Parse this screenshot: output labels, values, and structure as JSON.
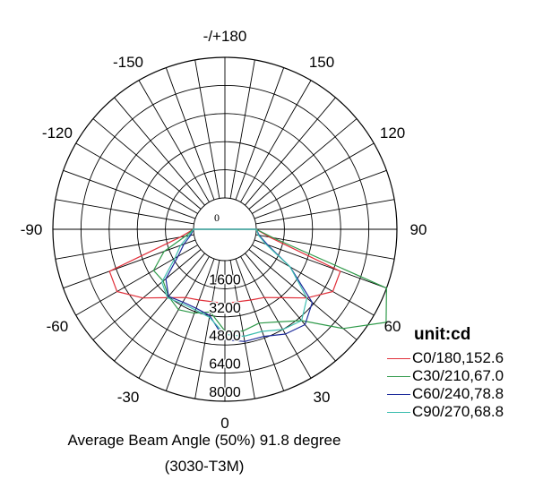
{
  "chart_data": {
    "type": "polar",
    "title": "",
    "unit_label": "unit:cd",
    "angle_labels": [
      {
        "angle": 180,
        "text": "-/+180"
      },
      {
        "angle": 150,
        "text": "150"
      },
      {
        "angle": -150,
        "text": "-150"
      },
      {
        "angle": 120,
        "text": "120"
      },
      {
        "angle": -120,
        "text": "-120"
      },
      {
        "angle": 90,
        "text": "90"
      },
      {
        "angle": -90,
        "text": "-90"
      },
      {
        "angle": 60,
        "text": "60"
      },
      {
        "angle": -60,
        "text": "-60"
      },
      {
        "angle": 30,
        "text": "30"
      },
      {
        "angle": -30,
        "text": "-30"
      },
      {
        "angle": 0,
        "text": "0"
      }
    ],
    "radial_ticks": [
      {
        "value": 0,
        "text": "0"
      },
      {
        "value": 1600,
        "text": "1600"
      },
      {
        "value": 3200,
        "text": "3200"
      },
      {
        "value": 4800,
        "text": "4800"
      },
      {
        "value": 6400,
        "text": "6400"
      },
      {
        "value": 8000,
        "text": "8000"
      }
    ],
    "rmax": 8000,
    "series": [
      {
        "name": "C0/180,152.6",
        "color": "#e0303a",
        "angles": [
          -90,
          -80,
          -70,
          -60,
          -50,
          -40,
          -30,
          -20,
          -10,
          0,
          10,
          20,
          30,
          40,
          50,
          60,
          70,
          80,
          90
        ],
        "values": [
          0,
          800,
          5200,
          5300,
          4300,
          3300,
          2700,
          2500,
          2400,
          2450,
          2400,
          2500,
          2700,
          3300,
          4300,
          5300,
          5200,
          800,
          0
        ]
      },
      {
        "name": "C30/210,67.0",
        "color": "#2f9a4a",
        "angles": [
          -90,
          -80,
          -70,
          -60,
          -50,
          -40,
          -30,
          -20,
          -10,
          0,
          10,
          20,
          30,
          40,
          50,
          60,
          70,
          80,
          90
        ],
        "values": [
          0,
          500,
          1900,
          2900,
          2800,
          3200,
          3500,
          3300,
          3000,
          4000,
          4100,
          3900,
          4300,
          5000,
          7000,
          8800,
          8000,
          1000,
          0
        ]
      },
      {
        "name": "C60/240,78.8",
        "color": "#1c2a9a",
        "angles": [
          -90,
          -80,
          -70,
          -60,
          -50,
          -40,
          -30,
          -20,
          -10,
          0,
          10,
          20,
          30,
          40,
          50,
          60,
          70,
          80,
          90
        ],
        "values": [
          0,
          200,
          700,
          1300,
          2600,
          3200,
          3000,
          3000,
          3200,
          4500,
          4700,
          4700,
          5100,
          5300,
          4700,
          2500,
          800,
          200,
          0
        ]
      },
      {
        "name": "C90/270,68.8",
        "color": "#3fbfb0",
        "angles": [
          -90,
          -80,
          -70,
          -60,
          -50,
          -40,
          -30,
          -20,
          -10,
          0,
          10,
          20,
          30,
          40,
          50,
          60,
          70,
          80,
          90
        ],
        "values": [
          0,
          300,
          900,
          1500,
          2900,
          3300,
          3100,
          3100,
          3300,
          4200,
          4400,
          4400,
          4800,
          5000,
          4300,
          2500,
          700,
          150,
          0
        ]
      }
    ]
  },
  "caption": {
    "line1": "Average Beam Angle (50%) 91.8 degree",
    "line2": "(3030-T3M)"
  }
}
